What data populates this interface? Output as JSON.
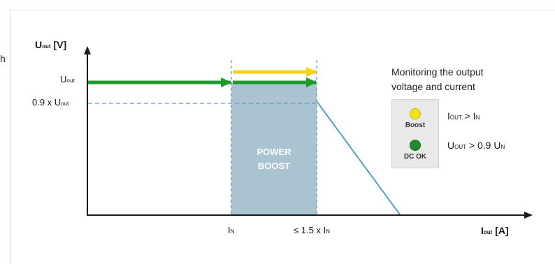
{
  "left_stub": "h",
  "axes": {
    "y_main": "U",
    "y_sub": "out",
    "y_unit": "[V]",
    "x_main": "I",
    "x_sub": "out",
    "x_unit": "[A]"
  },
  "y_ticks": {
    "u_out_main": "U",
    "u_out_sub": "out",
    "u09_prefix": "0.9 x U",
    "u09_sub": "out"
  },
  "x_ticks": {
    "in_main": "I",
    "in_sub": "N",
    "max_prefix": "≤ 1.5 x I",
    "max_sub": "N"
  },
  "region": {
    "line1": "POWER",
    "line2": "BOOST"
  },
  "monitoring": {
    "title_line1": "Monitoring the output",
    "title_line2": "voltage and current",
    "boost_label": "Boost",
    "dcok_label": "DC OK",
    "cond1_a": "I",
    "cond1_a_sub": "OUT",
    "cond1_op": " > I",
    "cond1_b_sub": "N",
    "cond2_a": "U",
    "cond2_a_sub": "OUT",
    "cond2_op": " > 0.9 U",
    "cond2_b_sub": "N"
  },
  "colors": {
    "region_fill": "#a9c3d0",
    "green_arrow": "#1f9a2c",
    "yellow_arrow": "#f5d21c",
    "fold_line": "#5aa0b8",
    "axis": "#1a1a1a",
    "dashed": "#5aa0b8"
  }
}
